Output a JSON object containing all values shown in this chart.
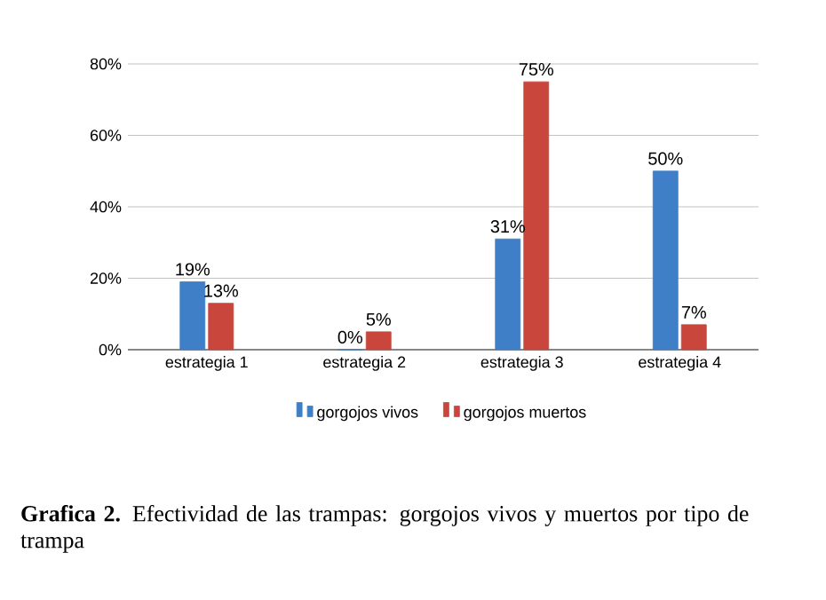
{
  "chart_data": {
    "type": "bar",
    "categories": [
      "estrategia 1",
      "estrategia 2",
      "estrategia 3",
      "estrategia 4"
    ],
    "series": [
      {
        "name": "gorgojos vivos",
        "color": "#3f7fc7",
        "values": [
          19,
          0,
          31,
          50
        ],
        "value_labels": [
          "19%",
          "0%",
          "31%",
          "50%"
        ]
      },
      {
        "name": "gorgojos muertos",
        "color": "#c8463c",
        "values": [
          13,
          5,
          75,
          7
        ],
        "value_labels": [
          "13%",
          "5%",
          "75%",
          "7%"
        ]
      }
    ],
    "ylim": [
      0,
      80
    ],
    "yticks": [
      {
        "value": 0,
        "label": "0%"
      },
      {
        "value": 20,
        "label": "20%"
      },
      {
        "value": 40,
        "label": "40%"
      },
      {
        "value": 60,
        "label": "60%"
      },
      {
        "value": 80,
        "label": "80%"
      }
    ],
    "grid": "y",
    "legend": "bottom",
    "annotations": [
      "**Grafica 2.** Efectividad de las trampas: gorgojos vivos y muertos por tipo de trampa"
    ]
  }
}
